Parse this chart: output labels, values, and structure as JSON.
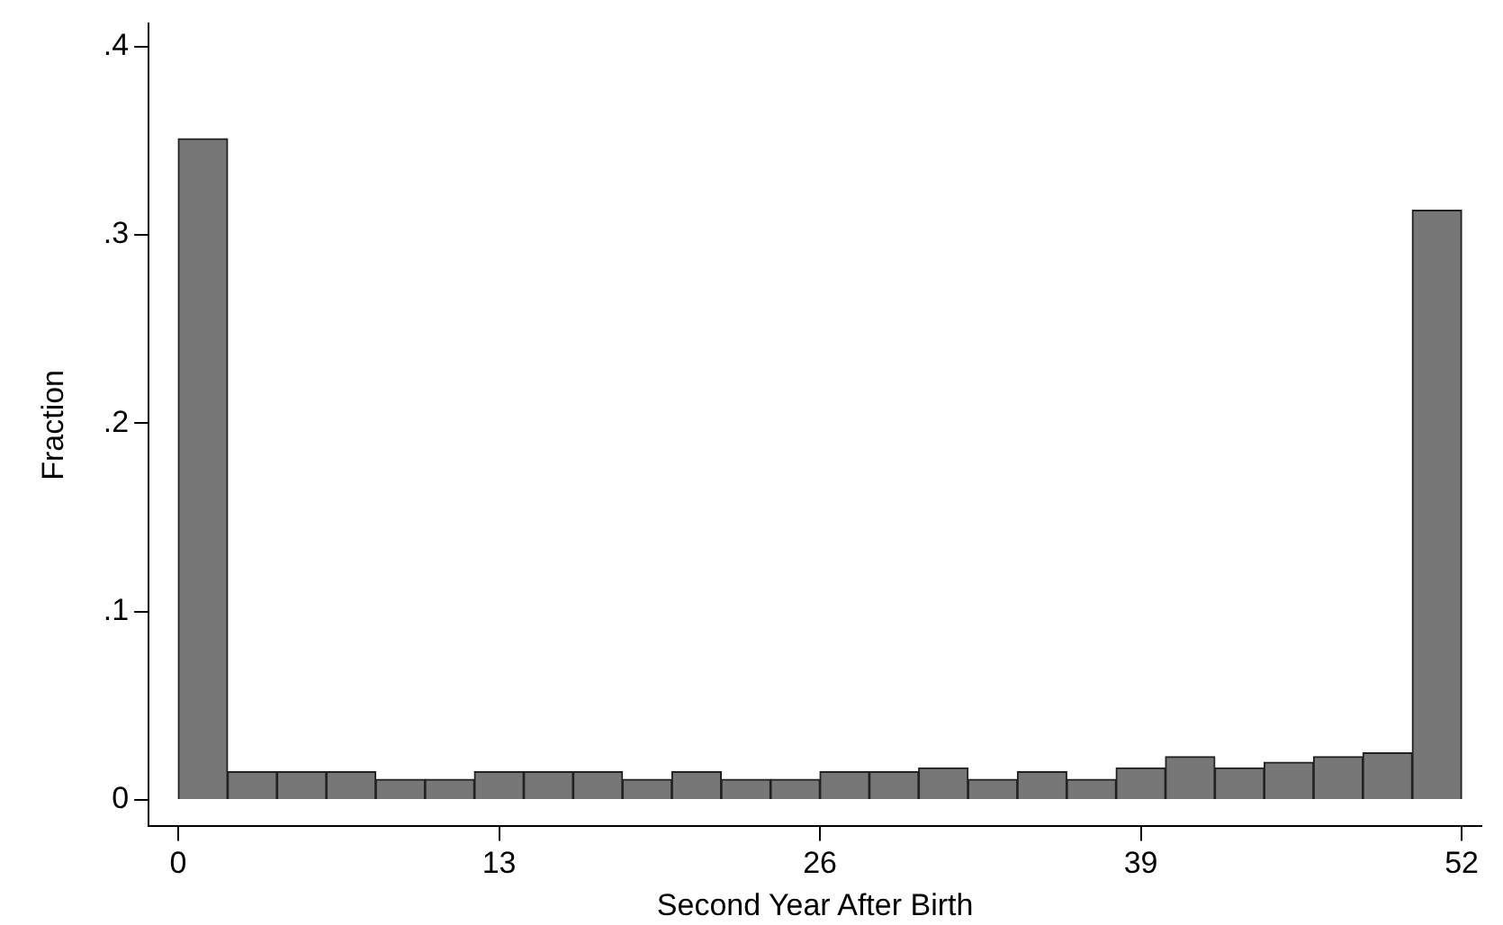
{
  "chart_data": {
    "type": "histogram",
    "xlabel": "Second Year After Birth",
    "ylabel": "Fraction",
    "bins": [
      0,
      2,
      4,
      6,
      8,
      10,
      12,
      14,
      16,
      18,
      20,
      22,
      24,
      26,
      28,
      30,
      32,
      34,
      36,
      38,
      40,
      42,
      44,
      46,
      48,
      50,
      52
    ],
    "values": [
      0.351,
      0.015,
      0.015,
      0.015,
      0.011,
      0.011,
      0.015,
      0.015,
      0.015,
      0.011,
      0.015,
      0.011,
      0.011,
      0.015,
      0.015,
      0.017,
      0.011,
      0.015,
      0.011,
      0.017,
      0.023,
      0.017,
      0.02,
      0.023,
      0.025,
      0.313
    ],
    "color": "#777777",
    "xlim": [
      -1.2,
      52.8
    ],
    "xticks": [
      0,
      13,
      26,
      39,
      52
    ],
    "ylim": [
      -0.014,
      0.412
    ],
    "yticks": [
      0,
      {
        "value": 0.1,
        "label": ".1"
      },
      {
        "value": 0.2,
        "label": ".2"
      },
      {
        "value": 0.3,
        "label": ".3"
      },
      {
        "value": 0.4,
        "label": ".4"
      }
    ],
    "grid": false,
    "legend": false
  }
}
